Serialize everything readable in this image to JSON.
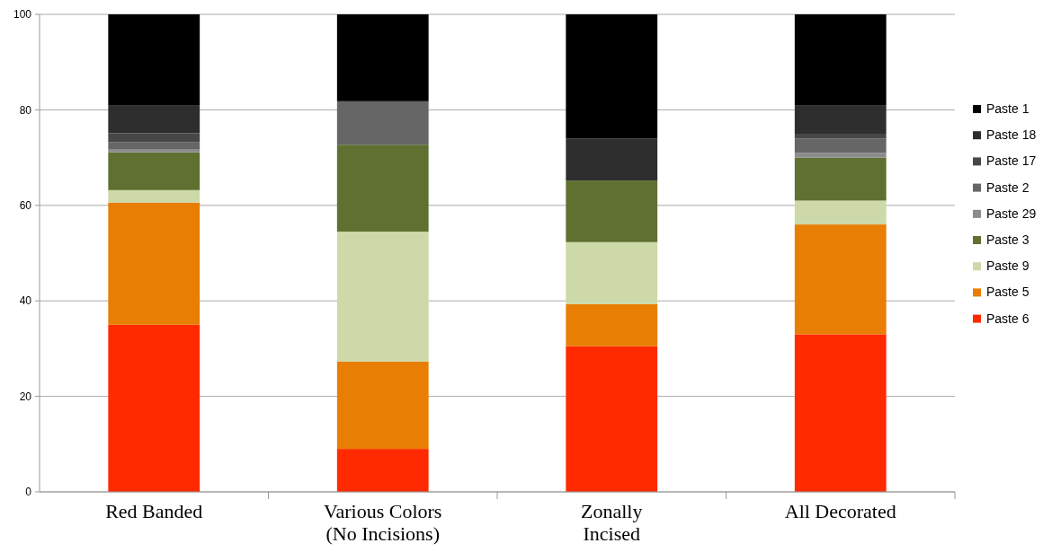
{
  "chart_data": {
    "type": "bar",
    "stacked": true,
    "categories": [
      "Red Banded",
      "Various Colors\n(No Incisions)",
      "Zonally\nIncised",
      "All Decorated"
    ],
    "series": [
      {
        "name": "Paste 6",
        "color": "#ff2a00",
        "values": [
          35,
          9,
          30.5,
          33
        ]
      },
      {
        "name": "Paste 5",
        "color": "#e87e04",
        "values": [
          25.6,
          18.3,
          8.8,
          23
        ]
      },
      {
        "name": "Paste 9",
        "color": "#cdd9a8",
        "values": [
          2.6,
          27.2,
          13,
          5
        ]
      },
      {
        "name": "Paste 3",
        "color": "#5f7030",
        "values": [
          7.9,
          18.2,
          12.9,
          9
        ]
      },
      {
        "name": "Paste 29",
        "color": "#8c8c8c",
        "values": [
          0.7,
          0,
          0,
          1
        ]
      },
      {
        "name": "Paste 2",
        "color": "#666666",
        "values": [
          1.4,
          9.1,
          0,
          3
        ]
      },
      {
        "name": "Paste 17",
        "color": "#474747",
        "values": [
          1.9,
          0,
          0,
          1
        ]
      },
      {
        "name": "Paste 18",
        "color": "#2e2e2e",
        "values": [
          5.9,
          0,
          8.8,
          6
        ]
      },
      {
        "name": "Paste 1",
        "color": "#000000",
        "values": [
          19,
          18.2,
          26,
          19
        ]
      }
    ],
    "ylim": [
      0,
      100
    ],
    "yticks": [
      0,
      20,
      40,
      60,
      80,
      100
    ],
    "grid": "y",
    "legend": "right"
  }
}
